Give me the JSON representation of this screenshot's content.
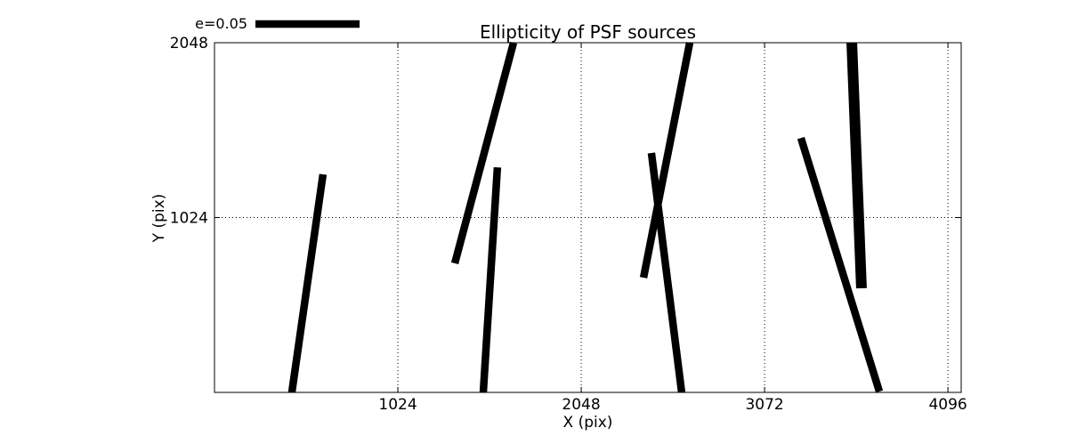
{
  "chart_data": {
    "type": "line",
    "subtype": "ellipticity-whisker-map",
    "title": "Ellipticity of PSF sources",
    "xlabel": "X (pix)",
    "ylabel": "Y (pix)",
    "xlim": [
      0,
      4170
    ],
    "ylim": [
      0,
      2048
    ],
    "xticks": [
      1024,
      2048,
      3072,
      4096
    ],
    "yticks": [
      1024,
      2048
    ],
    "grid": {
      "on": true,
      "style": "dotted",
      "color": "#000000"
    },
    "legend": {
      "label": "e=0.05",
      "position": "upper-left-outside"
    },
    "colors": {
      "line": "#000000",
      "background": "#ffffff",
      "text": "#000000",
      "axis": "#000000"
    },
    "segments": [
      {
        "x1": 432,
        "y1": 0,
        "x2": 606,
        "y2": 1277,
        "lw": 8.5
      },
      {
        "x1": 1342,
        "y1": 756,
        "x2": 1670,
        "y2": 2048,
        "lw": 8.5
      },
      {
        "x1": 1501,
        "y1": 0,
        "x2": 1580,
        "y2": 1318,
        "lw": 8.5
      },
      {
        "x1": 2440,
        "y1": 1402,
        "x2": 2609,
        "y2": 0,
        "lw": 8.5
      },
      {
        "x1": 2396,
        "y1": 672,
        "x2": 2654,
        "y2": 2048,
        "lw": 8.5
      },
      {
        "x1": 3275,
        "y1": 1490,
        "x2": 3713,
        "y2": 5,
        "lw": 8.5
      },
      {
        "x1": 3559,
        "y1": 2048,
        "x2": 3613,
        "y2": 610,
        "lw": 12
      }
    ]
  }
}
